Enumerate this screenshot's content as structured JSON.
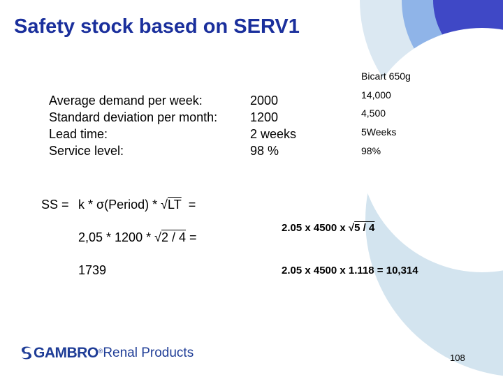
{
  "title": "Safety stock based on SERV1",
  "product_header": "Bicart 650g",
  "params": [
    {
      "label": "Average demand per week:",
      "value": "2000",
      "product_value": "14,000"
    },
    {
      "label": "Standard deviation per month:",
      "value": "1200",
      "product_value": "4,500"
    },
    {
      "label": "Lead time:",
      "value": "2 weeks",
      "product_value": "5Weeks"
    },
    {
      "label": "Service level:",
      "value": "98 %",
      "product_value": "98%"
    }
  ],
  "formula": {
    "prefix": "SS =",
    "expr_before": "k * σ(Period) * ",
    "root_symbol": "√",
    "radicand": "LT",
    "suffix": "="
  },
  "calc_left": {
    "line1_before": "2,05 * 1200 * ",
    "line1_radicand": "2 / 4",
    "line1_suffix": "=",
    "result": "1739"
  },
  "calc_right": {
    "line1_before": "2.05 x 4500 x ",
    "line1_radicand": "5 / 4",
    "line2": "2.05 x 4500 x 1.118 = 10,314"
  },
  "logo": {
    "brand": "GAMBRO",
    "suffix": "Renal Products",
    "reg_mark": "®",
    "icon": "gambro-swirl-icon"
  },
  "page_number": "108",
  "colors": {
    "title": "#1a2f9c",
    "arc_dark": "#3f48c6",
    "arc_mid": "#7ea8e6",
    "arc_light": "#cfe1ee",
    "logo": "#1e3c96"
  }
}
